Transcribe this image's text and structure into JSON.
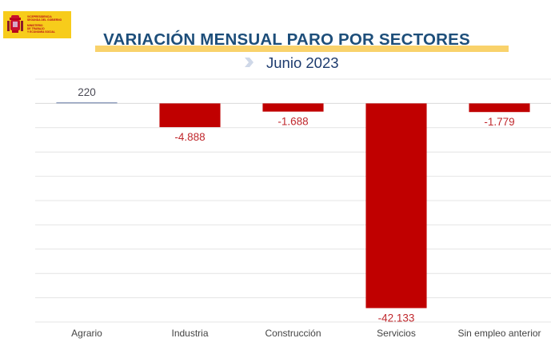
{
  "logo": {
    "lines_top": [
      "VICEPRESIDENCIA",
      "SEGUNDA DEL GOBIERNO"
    ],
    "lines_bottom": [
      "MINISTERIO",
      "DE TRABAJO",
      "Y ECONOMÍA SOCIAL"
    ],
    "colors": {
      "background": "#f7cc1b",
      "text": "#b7001a"
    }
  },
  "header": {
    "title": "VARIACIÓN MENSUAL PARO POR SECTORES",
    "subtitle": "Junio 2023",
    "chevron_icon": "chevron-right-icon"
  },
  "chart_data": {
    "type": "bar",
    "title": "VARIACIÓN MENSUAL PARO POR SECTORES",
    "subtitle": "Junio 2023",
    "xlabel": "",
    "ylabel": "",
    "categories": [
      "Agrario",
      "Industria",
      "Construcción",
      "Servicios",
      "Sin empleo anterior"
    ],
    "values": [
      220,
      -4888,
      -1688,
      -42133,
      -1779
    ],
    "data_labels": [
      "220",
      "-4.888",
      "-1.688",
      "-42.133",
      "-1.779"
    ],
    "ylim": [
      -45000,
      5000
    ],
    "ytick_step": 5000,
    "grid": true,
    "legend": "none",
    "colors": {
      "positive": "#8e9dbd",
      "negative": "#c00000",
      "positive_label": "#4a4a55",
      "negative_label": "#c0282d",
      "grid": "#e4e4e4"
    }
  }
}
